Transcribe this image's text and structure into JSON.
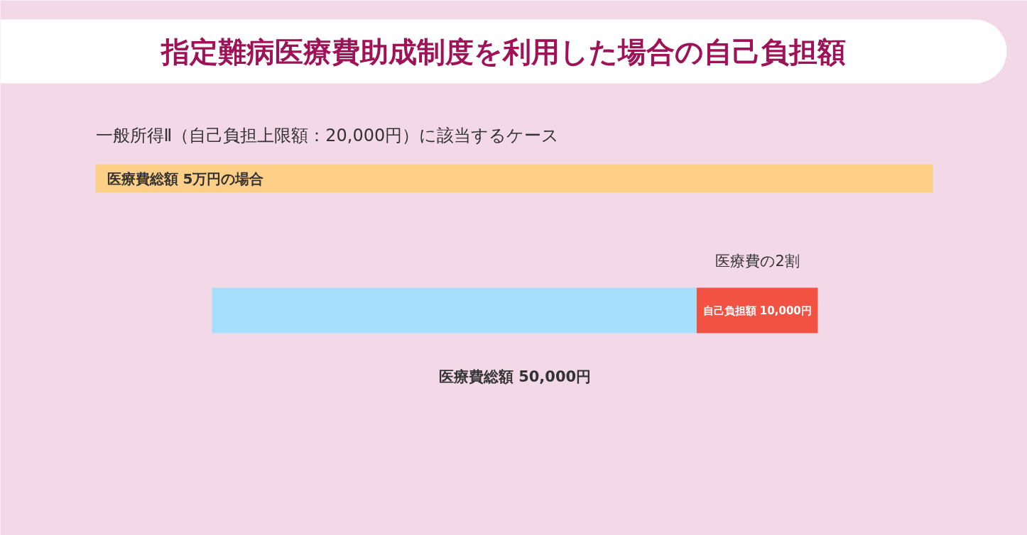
{
  "chart_data": {
    "type": "bar",
    "orientation": "horizontal",
    "stacked": true,
    "title": "指定難病医療費助成制度を利用した場合の自己負担額",
    "subtitle": "一般所得Ⅱ（自己負担上限額：20,000円）に該当するケース",
    "annotations": [
      "医療費総額 5万円の場合",
      "医療費の2割"
    ],
    "categories": [
      null
    ],
    "series": [
      {
        "color": "#a6dffc",
        "values": [
          40000
        ]
      },
      {
        "color": "#f15241",
        "values": [
          10000
        ],
        "value_labels": [
          "自己負担額 10,000円"
        ]
      }
    ],
    "totals": [
      "医療費総額 50,000円"
    ],
    "xlim": [
      0,
      50000
    ],
    "tick_labels": false
  }
}
